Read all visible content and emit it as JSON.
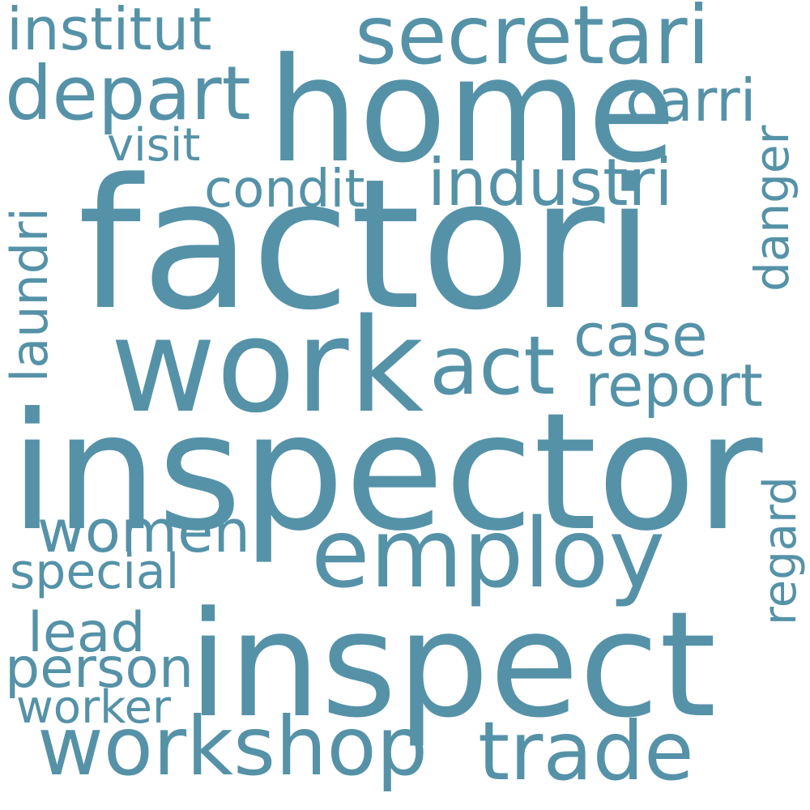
{
  "theme": {
    "word_color": "#5592A8",
    "background": "#FFFFFF"
  },
  "words": {
    "factori": "factori",
    "inspector": "inspector",
    "inspect": "inspect",
    "home": "home",
    "work": "work",
    "employ": "employ",
    "secretari": "secretari",
    "workshop": "workshop",
    "trade": "trade",
    "industri": "industri",
    "act": "act",
    "depart": "depart",
    "institut": "institut",
    "carri": "carri",
    "condit": "condit",
    "visit": "visit",
    "case": "case",
    "report": "report",
    "danger": "danger",
    "laundri": "laundri",
    "regard": "regard",
    "women": "women",
    "special": "special",
    "lead": "lead",
    "person": "person",
    "worker": "worker"
  }
}
